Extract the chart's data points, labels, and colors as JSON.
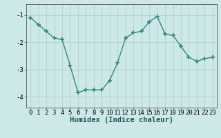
{
  "x": [
    0,
    1,
    2,
    3,
    4,
    5,
    6,
    7,
    8,
    9,
    10,
    11,
    12,
    13,
    14,
    15,
    16,
    17,
    18,
    19,
    20,
    21,
    22,
    23
  ],
  "y": [
    -1.1,
    -1.35,
    -1.6,
    -1.85,
    -1.9,
    -2.85,
    -3.85,
    -3.75,
    -3.75,
    -3.75,
    -3.4,
    -2.75,
    -1.85,
    -1.65,
    -1.6,
    -1.25,
    -1.05,
    -1.7,
    -1.75,
    -2.15,
    -2.55,
    -2.7,
    -2.6,
    -2.55
  ],
  "line_color": "#2e8b7a",
  "marker": "+",
  "marker_size": 4,
  "marker_lw": 1.2,
  "bg_color": "#cce8e8",
  "grid_color": "#b8d4d4",
  "xlabel": "Humidex (Indice chaleur)",
  "xlabel_fontsize": 7.5,
  "tick_fontsize": 6.5,
  "ylim": [
    -4.4,
    -0.6
  ],
  "xlim": [
    -0.5,
    23.5
  ],
  "yticks": [
    -4,
    -3,
    -2,
    -1
  ],
  "xticks": [
    0,
    1,
    2,
    3,
    4,
    5,
    6,
    7,
    8,
    9,
    10,
    11,
    12,
    13,
    14,
    15,
    16,
    17,
    18,
    19,
    20,
    21,
    22,
    23
  ],
  "line_width": 1.0,
  "spine_color": "#555555"
}
